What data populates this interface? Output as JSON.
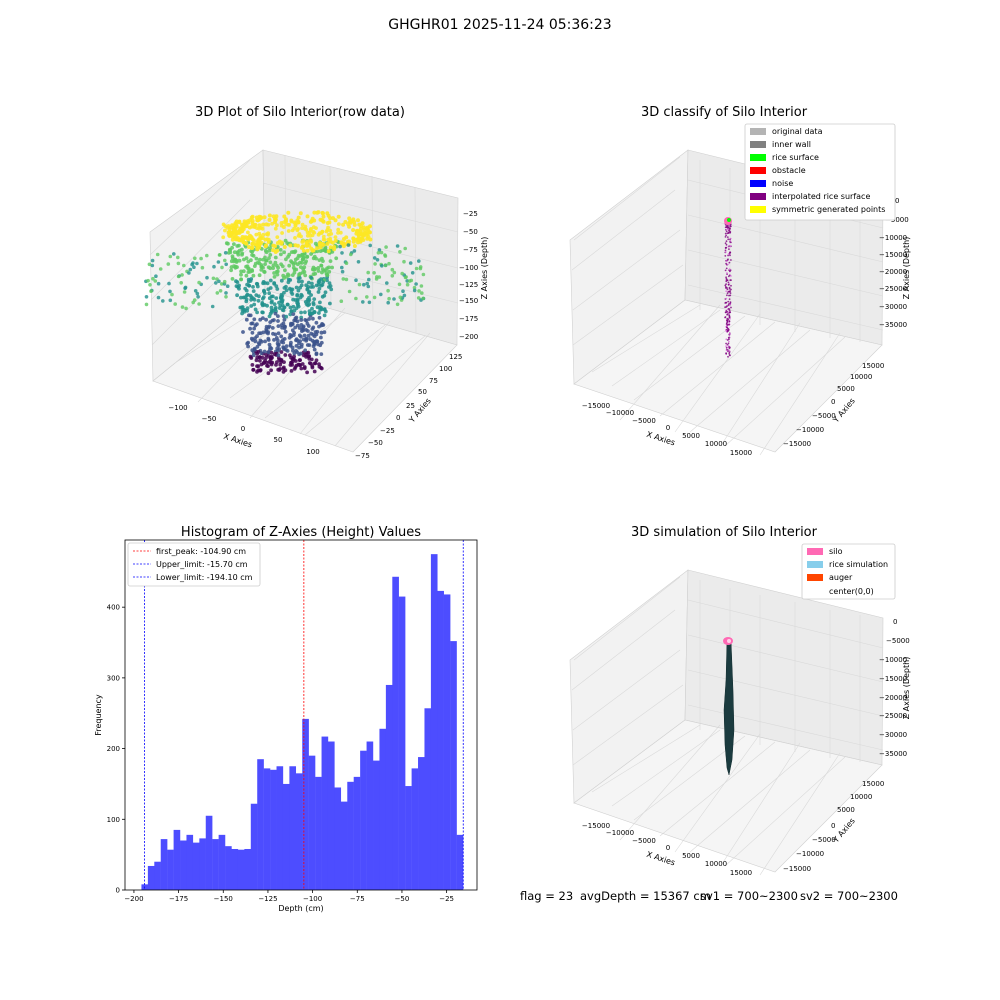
{
  "figure_title": "GHGHR01 2025-11-24 05:36:23",
  "status_line": {
    "flag": "flag = 23",
    "avg_depth": "avgDepth = 15367 cm",
    "sv1": "sv1 = 700~2300",
    "sv2": "sv2 = 700~2300"
  },
  "colors": {
    "histogram_bar": "#4d4dff",
    "first_peak_line": "#ff0000",
    "limit_lines": "#0000ff",
    "pane": "#f2f2f2",
    "viridis": [
      "#440154",
      "#3b528b",
      "#21918c",
      "#5ec962",
      "#fde725"
    ],
    "legend_classify": [
      "#b4b4b4",
      "#808080",
      "#00ff00",
      "#ff0000",
      "#0000ff",
      "#800080",
      "#ffff00"
    ],
    "legend_sim": [
      "#ff69b4",
      "#87ceeb",
      "#ff4500",
      "#ffffff"
    ],
    "silo_body": "#1b3b3f"
  },
  "chart_data": [
    {
      "type": "scatter",
      "title": "3D Plot of Silo Interior(row data)",
      "xlabel": "X Axies",
      "ylabel": "Y Axies",
      "zlabel": "Z Axies (Depth)",
      "x_ticks": [
        "−100",
        "−50",
        "0",
        "50",
        "100"
      ],
      "y_ticks": [
        "−75",
        "−50",
        "−25",
        "0",
        "25",
        "50",
        "75",
        "100",
        "125"
      ],
      "z_ticks": [
        "−25",
        "−50",
        "−75",
        "−100",
        "−125",
        "−150",
        "−175",
        "−200"
      ],
      "colormap": "viridis",
      "grid": true
    },
    {
      "type": "scatter",
      "title": "3D classify of Silo Interior",
      "xlabel": "X Axies",
      "ylabel": "Y Axies",
      "zlabel": "Z Axies (Depth)",
      "x_ticks": [
        "−15000",
        "−10000",
        "−5000",
        "0",
        "5000",
        "10000",
        "15000"
      ],
      "y_ticks": [
        "−15000",
        "−10000",
        "−5000",
        "0",
        "5000",
        "10000",
        "15000"
      ],
      "z_ticks": [
        "0",
        "−5000",
        "−10000",
        "−15000",
        "−20000",
        "−25000",
        "−30000",
        "−35000"
      ],
      "legend": [
        "original data",
        "inner wall",
        "rice surface",
        "obstacle",
        "noise",
        "interpolated rice surface",
        "symmetric generated points"
      ],
      "legend_position": "top-right",
      "grid": true
    },
    {
      "type": "bar",
      "title": "Histogram of Z-Axies (Height) Values",
      "xlabel": "Depth (cm)",
      "ylabel": "Frequency",
      "bin_start": -195.8,
      "bin_width": 3.6,
      "values": [
        8,
        34,
        40,
        72,
        57,
        85,
        70,
        78,
        67,
        73,
        105,
        72,
        78,
        62,
        58,
        57,
        58,
        122,
        185,
        172,
        170,
        175,
        150,
        175,
        165,
        242,
        190,
        160,
        217,
        210,
        145,
        125,
        153,
        160,
        197,
        210,
        183,
        228,
        290,
        443,
        415,
        147,
        172,
        188,
        257,
        475,
        423,
        418,
        352,
        78
      ],
      "xlim": [
        -205,
        -8
      ],
      "ylim": [
        0,
        495
      ],
      "x_ticks": [
        -200,
        -175,
        -150,
        -125,
        -100,
        -75,
        -50,
        -25
      ],
      "y_ticks": [
        0,
        100,
        200,
        300,
        400
      ],
      "vlines": [
        {
          "label": "first_peak: -104.90 cm",
          "x": -104.9
        },
        {
          "label": "Upper_limit: -15.70 cm",
          "x": -15.7
        },
        {
          "label": "Lower_limit: -194.10 cm",
          "x": -194.1
        }
      ],
      "legend_position": "top-left",
      "grid": false
    },
    {
      "type": "scatter",
      "title": "3D simulation of Silo Interior",
      "xlabel": "X Axies",
      "ylabel": "Y Axies",
      "zlabel": "Z Axies (Depth)",
      "x_ticks": [
        "−15000",
        "−10000",
        "−5000",
        "0",
        "5000",
        "10000",
        "15000"
      ],
      "y_ticks": [
        "−15000",
        "−10000",
        "−5000",
        "0",
        "5000",
        "10000",
        "15000"
      ],
      "z_ticks": [
        "0",
        "−5000",
        "−10000",
        "−15000",
        "−20000",
        "−25000",
        "−30000",
        "−35000"
      ],
      "legend": [
        "silo",
        "rice simulation",
        "auger",
        "center(0,0)"
      ],
      "legend_position": "top-right",
      "grid": true
    }
  ]
}
